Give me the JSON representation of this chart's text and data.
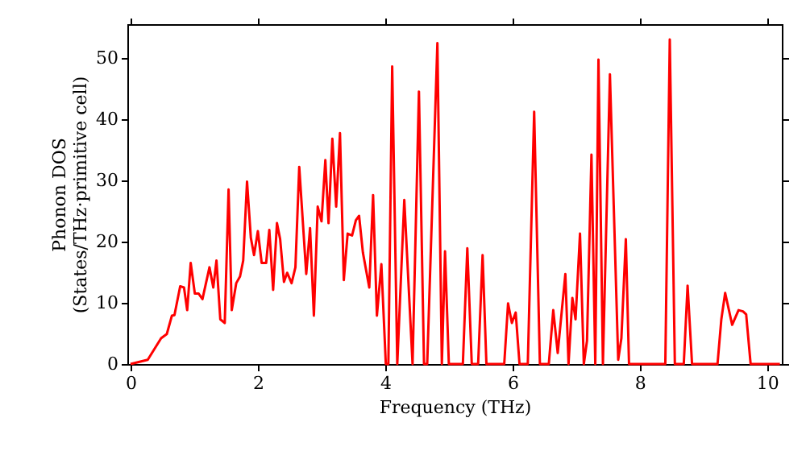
{
  "chart_data": {
    "type": "line",
    "xlabel": "Frequency (THz)",
    "ylabel": "Phonon DOS\n(States/THz·primitive cell)",
    "xlim": [
      -0.05,
      10.23
    ],
    "ylim": [
      0,
      55.5
    ],
    "xticks": [
      0,
      2,
      4,
      6,
      8,
      10
    ],
    "yticks": [
      0,
      10,
      20,
      30,
      40,
      50
    ],
    "grid": false,
    "marker": "none",
    "line_style": "solid",
    "series": [
      {
        "color": "#ff0000",
        "x": [
          0,
          0.27,
          0.48,
          0.57,
          0.65,
          0.69,
          0.78,
          0.84,
          0.89,
          0.945,
          1.01,
          1.07,
          1.13,
          1.24,
          1.3,
          1.35,
          1.41,
          1.48,
          1.54,
          1.59,
          1.66,
          1.72,
          1.77,
          1.83,
          1.89,
          1.94,
          2.0,
          2.06,
          2.13,
          2.18,
          2.24,
          2.3,
          2.35,
          2.41,
          2.46,
          2.53,
          2.59,
          2.65,
          2.76,
          2.82,
          2.88,
          2.94,
          3.0,
          3.06,
          3.11,
          3.17,
          3.23,
          3.29,
          3.35,
          3.41,
          3.48,
          3.54,
          3.59,
          3.65,
          3.75,
          3.81,
          3.87,
          3.94,
          4.01,
          4.05,
          4.11,
          4.19,
          4.3,
          4.43,
          4.53,
          4.61,
          4.66,
          4.82,
          4.89,
          4.94,
          5.0,
          5.22,
          5.29,
          5.36,
          5.46,
          5.53,
          5.59,
          5.87,
          5.93,
          5.99,
          6.05,
          6.11,
          6.24,
          6.34,
          6.43,
          6.57,
          6.64,
          6.71,
          6.83,
          6.88,
          6.94,
          6.99,
          7.06,
          7.12,
          7.17,
          7.24,
          7.3,
          7.35,
          7.42,
          7.53,
          7.66,
          7.71,
          7.78,
          7.83,
          8.4,
          8.47,
          8.55,
          8.69,
          8.75,
          8.82,
          9.22,
          9.28,
          9.34,
          9.45,
          9.55,
          9.62,
          9.67,
          9.74,
          10.2
        ],
        "values": [
          0,
          0.7,
          4.2,
          4.9,
          7.9,
          8,
          12.7,
          12.5,
          8.8,
          16.5,
          11.5,
          11.5,
          10.6,
          15.8,
          12.5,
          16.9,
          7.3,
          6.7,
          28.5,
          8.8,
          13.2,
          14.3,
          16.9,
          29.8,
          20.6,
          17.8,
          21.7,
          16.5,
          16.5,
          21.9,
          12.1,
          23,
          20.4,
          13.4,
          14.9,
          13.2,
          15.8,
          32.2,
          14.7,
          22.2,
          7.9,
          25.7,
          23.3,
          33.3,
          23,
          36.8,
          25.7,
          37.7,
          13.7,
          21.3,
          21,
          23.5,
          24.2,
          18.2,
          12.5,
          27.6,
          7.9,
          16.3,
          0,
          0,
          48.6,
          0,
          26.8,
          0,
          44.5,
          0,
          0,
          52.4,
          0,
          18.4,
          0,
          0,
          18.9,
          0,
          0,
          17.8,
          0,
          0,
          9.9,
          6.7,
          8.4,
          0,
          0,
          41.2,
          0,
          0,
          8.8,
          1.8,
          14.7,
          0,
          10.8,
          7.3,
          21.3,
          0,
          3.8,
          34.2,
          0,
          49.7,
          0,
          47.3,
          0.7,
          4.2,
          20.4,
          0,
          0,
          53,
          0,
          0,
          12.8,
          0,
          0,
          7.3,
          11.6,
          6.4,
          8.8,
          8.6,
          8.1,
          0,
          0
        ]
      }
    ]
  }
}
